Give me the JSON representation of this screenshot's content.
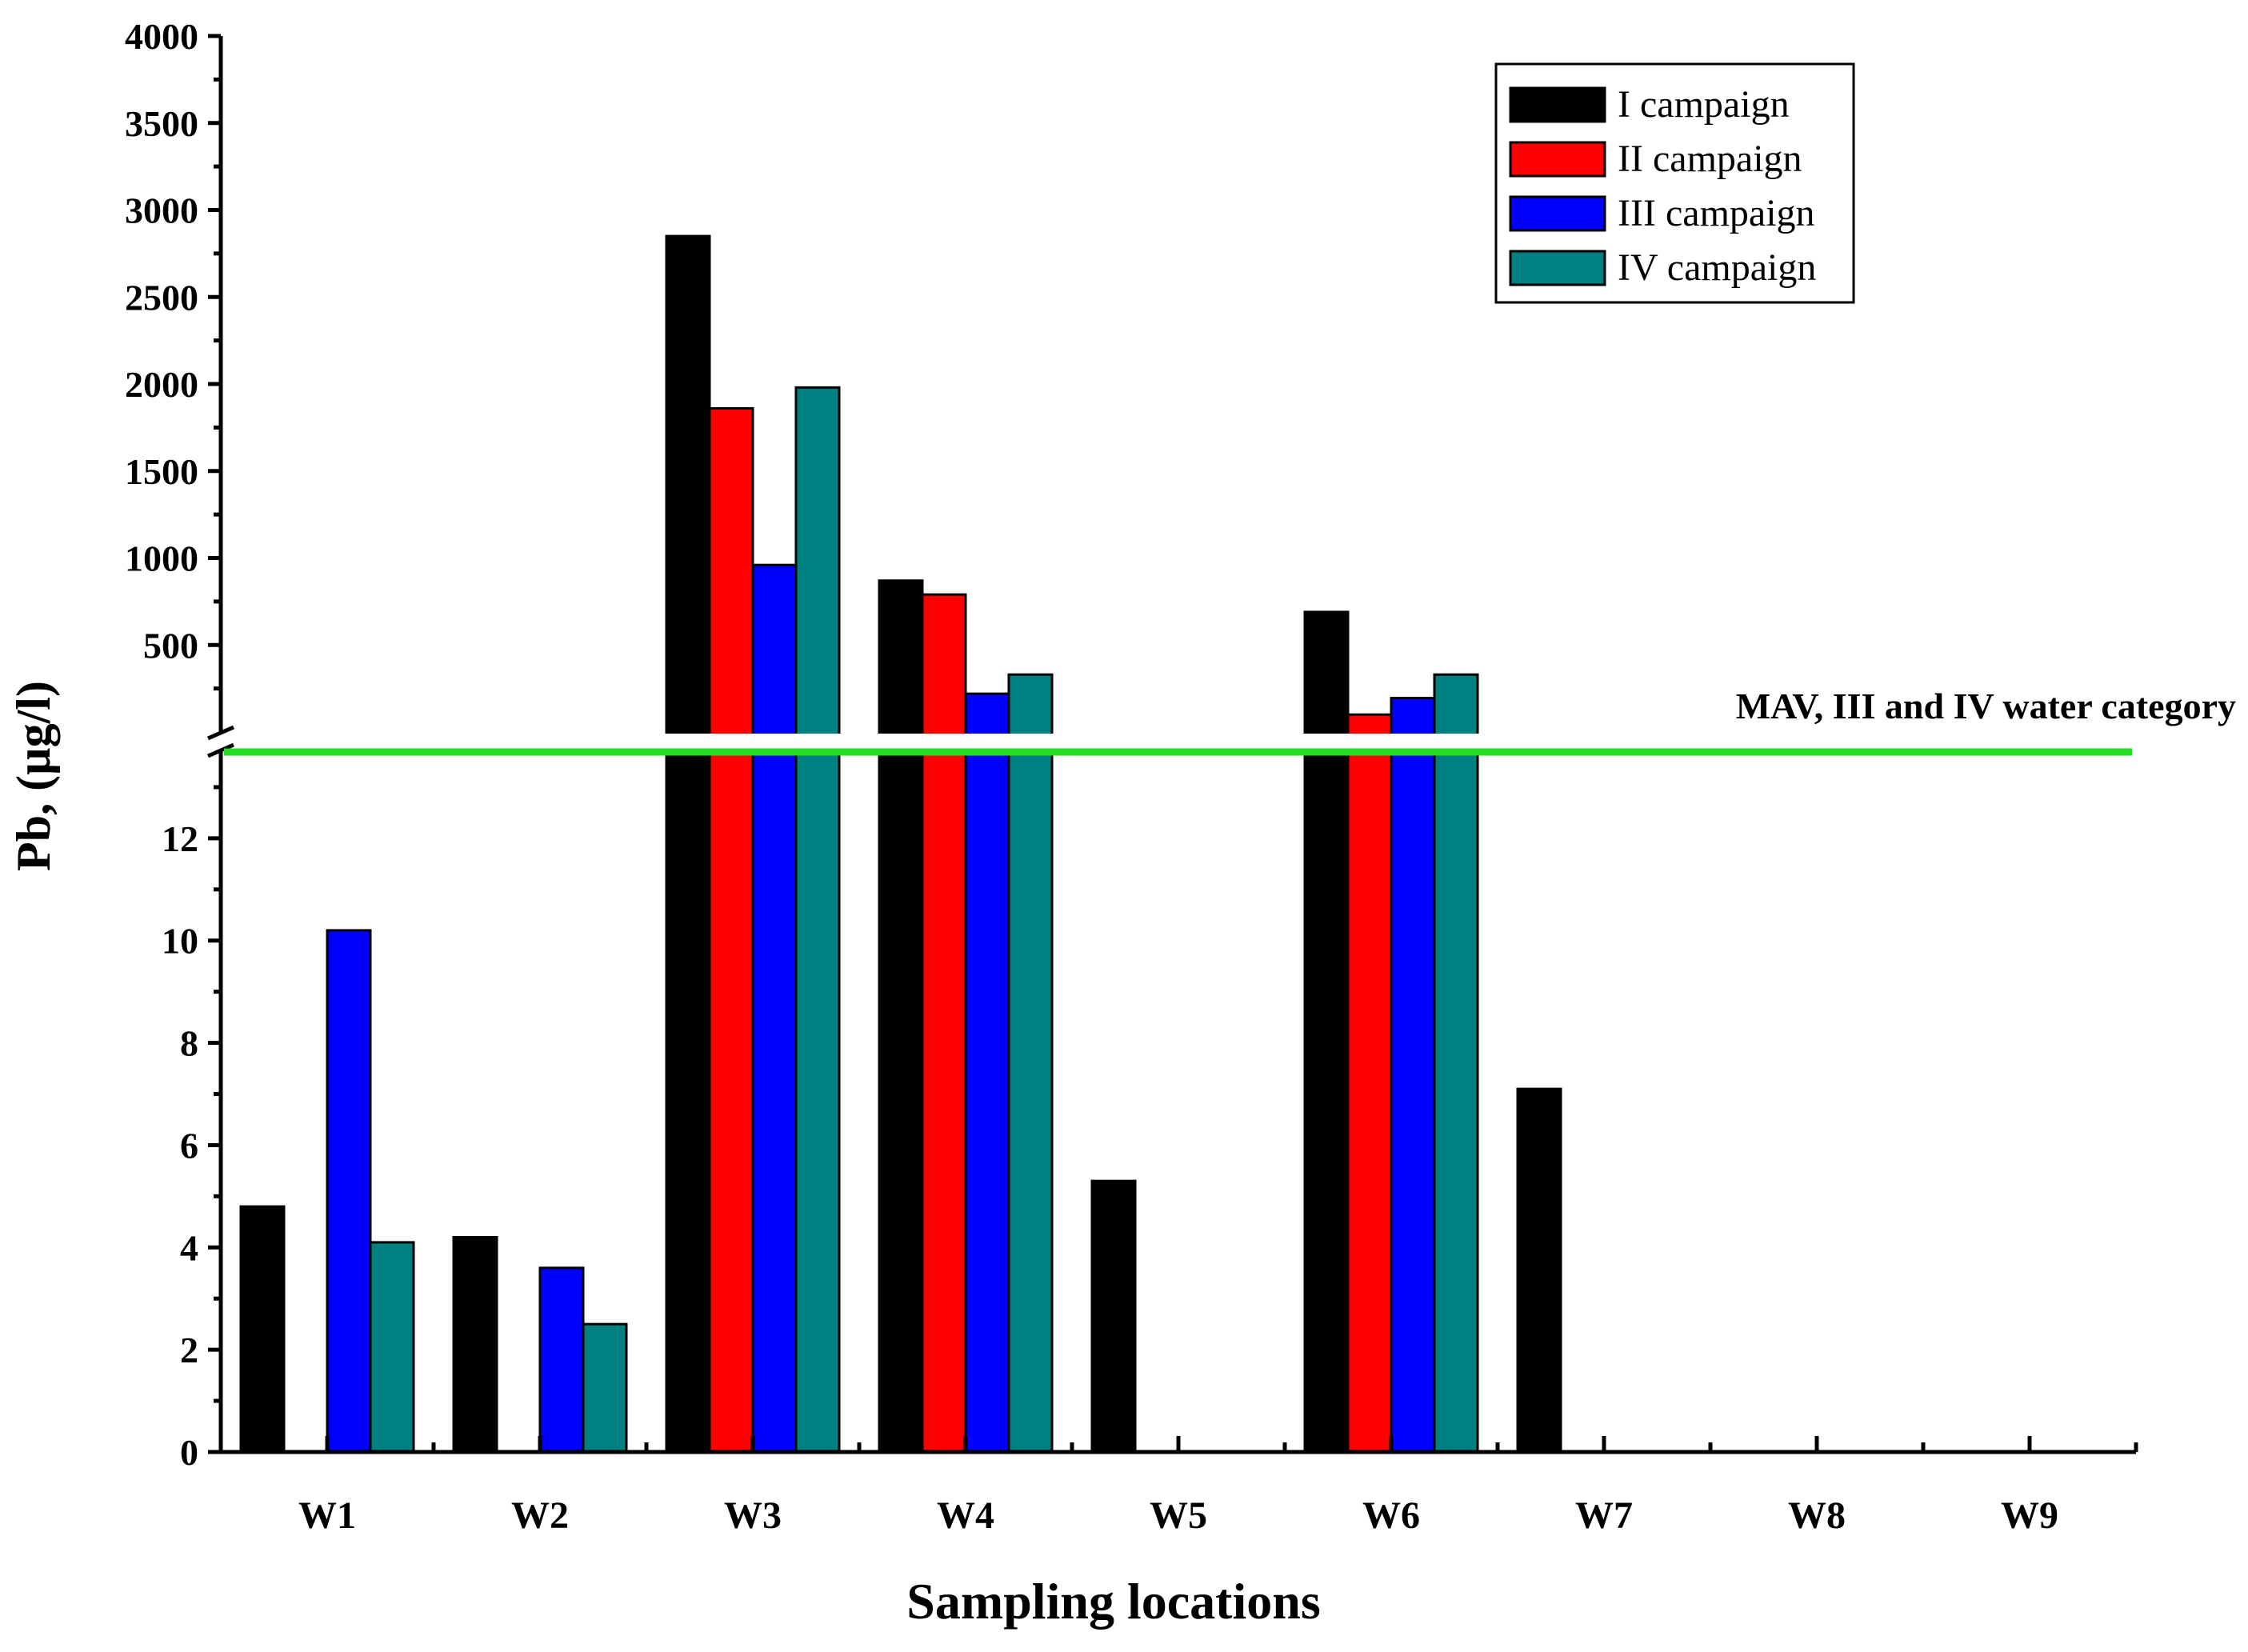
{
  "chart_data": {
    "type": "bar",
    "xlabel": "Sampling locations",
    "ylabel": "Pb, (µg/l)",
    "categories": [
      "W1",
      "W2",
      "W3",
      "W4",
      "W5",
      "W6",
      "W7",
      "W8",
      "W9"
    ],
    "axis_break": {
      "lower_range": [
        0,
        14
      ],
      "lower_ticks": [
        0,
        2,
        4,
        6,
        8,
        10,
        12
      ],
      "upper_range": [
        0,
        4000
      ],
      "upper_ticks": [
        500,
        1000,
        1500,
        2000,
        2500,
        3000,
        3500,
        4000
      ]
    },
    "series": [
      {
        "name": "I campaign",
        "color": "#000000",
        "values": [
          4.8,
          4.2,
          2850,
          870,
          5.3,
          690,
          7.1,
          0,
          0
        ]
      },
      {
        "name": "II campaign",
        "color": "#ff0000",
        "values": [
          0,
          0,
          1860,
          790,
          0,
          100,
          0,
          0,
          0
        ]
      },
      {
        "name": "III campaign",
        "color": "#0000ff",
        "values": [
          10.2,
          3.6,
          960,
          220,
          0,
          195,
          0,
          0,
          0
        ]
      },
      {
        "name": "IV campaign",
        "color": "#008080",
        "values": [
          4.1,
          2.5,
          1980,
          330,
          0,
          330,
          0,
          0,
          0
        ]
      }
    ],
    "reference_line": {
      "label": "MAV, III and IV water category",
      "color": "#22dd22"
    },
    "legend_position": "top-right"
  }
}
